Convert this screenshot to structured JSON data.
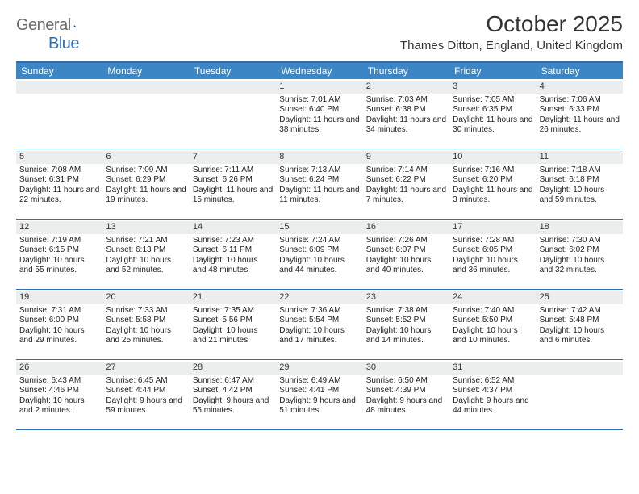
{
  "brand": {
    "text1": "General",
    "text2": "Blue"
  },
  "title": "October 2025",
  "location": "Thames Ditton, England, United Kingdom",
  "colors": {
    "header_bg": "#3d86c6",
    "border": "#2f6fae",
    "daynum_bg": "#eceded",
    "text": "#222222",
    "logo_gray": "#6a6a6a"
  },
  "dow": [
    "Sunday",
    "Monday",
    "Tuesday",
    "Wednesday",
    "Thursday",
    "Friday",
    "Saturday"
  ],
  "weeks": [
    [
      {
        "day": "",
        "sunrise": "",
        "sunset": "",
        "daylight": ""
      },
      {
        "day": "",
        "sunrise": "",
        "sunset": "",
        "daylight": ""
      },
      {
        "day": "",
        "sunrise": "",
        "sunset": "",
        "daylight": ""
      },
      {
        "day": "1",
        "sunrise": "Sunrise: 7:01 AM",
        "sunset": "Sunset: 6:40 PM",
        "daylight": "Daylight: 11 hours and 38 minutes."
      },
      {
        "day": "2",
        "sunrise": "Sunrise: 7:03 AM",
        "sunset": "Sunset: 6:38 PM",
        "daylight": "Daylight: 11 hours and 34 minutes."
      },
      {
        "day": "3",
        "sunrise": "Sunrise: 7:05 AM",
        "sunset": "Sunset: 6:35 PM",
        "daylight": "Daylight: 11 hours and 30 minutes."
      },
      {
        "day": "4",
        "sunrise": "Sunrise: 7:06 AM",
        "sunset": "Sunset: 6:33 PM",
        "daylight": "Daylight: 11 hours and 26 minutes."
      }
    ],
    [
      {
        "day": "5",
        "sunrise": "Sunrise: 7:08 AM",
        "sunset": "Sunset: 6:31 PM",
        "daylight": "Daylight: 11 hours and 22 minutes."
      },
      {
        "day": "6",
        "sunrise": "Sunrise: 7:09 AM",
        "sunset": "Sunset: 6:29 PM",
        "daylight": "Daylight: 11 hours and 19 minutes."
      },
      {
        "day": "7",
        "sunrise": "Sunrise: 7:11 AM",
        "sunset": "Sunset: 6:26 PM",
        "daylight": "Daylight: 11 hours and 15 minutes."
      },
      {
        "day": "8",
        "sunrise": "Sunrise: 7:13 AM",
        "sunset": "Sunset: 6:24 PM",
        "daylight": "Daylight: 11 hours and 11 minutes."
      },
      {
        "day": "9",
        "sunrise": "Sunrise: 7:14 AM",
        "sunset": "Sunset: 6:22 PM",
        "daylight": "Daylight: 11 hours and 7 minutes."
      },
      {
        "day": "10",
        "sunrise": "Sunrise: 7:16 AM",
        "sunset": "Sunset: 6:20 PM",
        "daylight": "Daylight: 11 hours and 3 minutes."
      },
      {
        "day": "11",
        "sunrise": "Sunrise: 7:18 AM",
        "sunset": "Sunset: 6:18 PM",
        "daylight": "Daylight: 10 hours and 59 minutes."
      }
    ],
    [
      {
        "day": "12",
        "sunrise": "Sunrise: 7:19 AM",
        "sunset": "Sunset: 6:15 PM",
        "daylight": "Daylight: 10 hours and 55 minutes."
      },
      {
        "day": "13",
        "sunrise": "Sunrise: 7:21 AM",
        "sunset": "Sunset: 6:13 PM",
        "daylight": "Daylight: 10 hours and 52 minutes."
      },
      {
        "day": "14",
        "sunrise": "Sunrise: 7:23 AM",
        "sunset": "Sunset: 6:11 PM",
        "daylight": "Daylight: 10 hours and 48 minutes."
      },
      {
        "day": "15",
        "sunrise": "Sunrise: 7:24 AM",
        "sunset": "Sunset: 6:09 PM",
        "daylight": "Daylight: 10 hours and 44 minutes."
      },
      {
        "day": "16",
        "sunrise": "Sunrise: 7:26 AM",
        "sunset": "Sunset: 6:07 PM",
        "daylight": "Daylight: 10 hours and 40 minutes."
      },
      {
        "day": "17",
        "sunrise": "Sunrise: 7:28 AM",
        "sunset": "Sunset: 6:05 PM",
        "daylight": "Daylight: 10 hours and 36 minutes."
      },
      {
        "day": "18",
        "sunrise": "Sunrise: 7:30 AM",
        "sunset": "Sunset: 6:02 PM",
        "daylight": "Daylight: 10 hours and 32 minutes."
      }
    ],
    [
      {
        "day": "19",
        "sunrise": "Sunrise: 7:31 AM",
        "sunset": "Sunset: 6:00 PM",
        "daylight": "Daylight: 10 hours and 29 minutes."
      },
      {
        "day": "20",
        "sunrise": "Sunrise: 7:33 AM",
        "sunset": "Sunset: 5:58 PM",
        "daylight": "Daylight: 10 hours and 25 minutes."
      },
      {
        "day": "21",
        "sunrise": "Sunrise: 7:35 AM",
        "sunset": "Sunset: 5:56 PM",
        "daylight": "Daylight: 10 hours and 21 minutes."
      },
      {
        "day": "22",
        "sunrise": "Sunrise: 7:36 AM",
        "sunset": "Sunset: 5:54 PM",
        "daylight": "Daylight: 10 hours and 17 minutes."
      },
      {
        "day": "23",
        "sunrise": "Sunrise: 7:38 AM",
        "sunset": "Sunset: 5:52 PM",
        "daylight": "Daylight: 10 hours and 14 minutes."
      },
      {
        "day": "24",
        "sunrise": "Sunrise: 7:40 AM",
        "sunset": "Sunset: 5:50 PM",
        "daylight": "Daylight: 10 hours and 10 minutes."
      },
      {
        "day": "25",
        "sunrise": "Sunrise: 7:42 AM",
        "sunset": "Sunset: 5:48 PM",
        "daylight": "Daylight: 10 hours and 6 minutes."
      }
    ],
    [
      {
        "day": "26",
        "sunrise": "Sunrise: 6:43 AM",
        "sunset": "Sunset: 4:46 PM",
        "daylight": "Daylight: 10 hours and 2 minutes."
      },
      {
        "day": "27",
        "sunrise": "Sunrise: 6:45 AM",
        "sunset": "Sunset: 4:44 PM",
        "daylight": "Daylight: 9 hours and 59 minutes."
      },
      {
        "day": "28",
        "sunrise": "Sunrise: 6:47 AM",
        "sunset": "Sunset: 4:42 PM",
        "daylight": "Daylight: 9 hours and 55 minutes."
      },
      {
        "day": "29",
        "sunrise": "Sunrise: 6:49 AM",
        "sunset": "Sunset: 4:41 PM",
        "daylight": "Daylight: 9 hours and 51 minutes."
      },
      {
        "day": "30",
        "sunrise": "Sunrise: 6:50 AM",
        "sunset": "Sunset: 4:39 PM",
        "daylight": "Daylight: 9 hours and 48 minutes."
      },
      {
        "day": "31",
        "sunrise": "Sunrise: 6:52 AM",
        "sunset": "Sunset: 4:37 PM",
        "daylight": "Daylight: 9 hours and 44 minutes."
      },
      {
        "day": "",
        "sunrise": "",
        "sunset": "",
        "daylight": ""
      }
    ]
  ]
}
